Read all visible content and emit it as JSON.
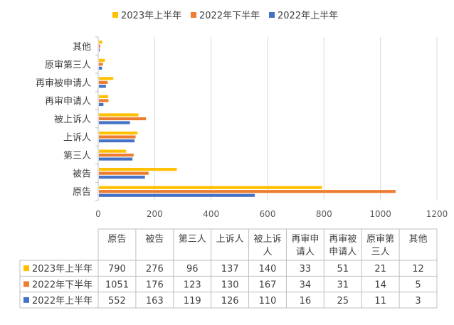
{
  "chart_data": {
    "type": "bar",
    "orientation": "horizontal",
    "title": "",
    "xlabel": "",
    "ylabel": "",
    "xlim": [
      0,
      1200
    ],
    "x_ticks": [
      0,
      200,
      400,
      600,
      800,
      1000,
      1200
    ],
    "grid": "vertical gridlines",
    "legend_position": "top",
    "categories": [
      "原告",
      "被告",
      "第三人",
      "上诉人",
      "被上诉人",
      "再审申请人",
      "再审被申请人",
      "原审第三人",
      "其他"
    ],
    "series": [
      {
        "name": "2023年上半年",
        "color": "#ffc000",
        "values": [
          790,
          276,
          96,
          137,
          140,
          33,
          51,
          21,
          12
        ]
      },
      {
        "name": "2022年下半年",
        "color": "#ed7d31",
        "values": [
          1051,
          176,
          123,
          130,
          167,
          34,
          31,
          14,
          5
        ]
      },
      {
        "name": "2022年上半年",
        "color": "#4472c4",
        "values": [
          552,
          163,
          119,
          126,
          110,
          16,
          25,
          11,
          3
        ]
      }
    ],
    "data_table": {
      "headers": [
        "原告",
        "被告",
        "第三人",
        "上诉人",
        "被上诉人",
        "再审申请人",
        "再审被申请人",
        "原审第三人",
        "其他"
      ]
    }
  }
}
